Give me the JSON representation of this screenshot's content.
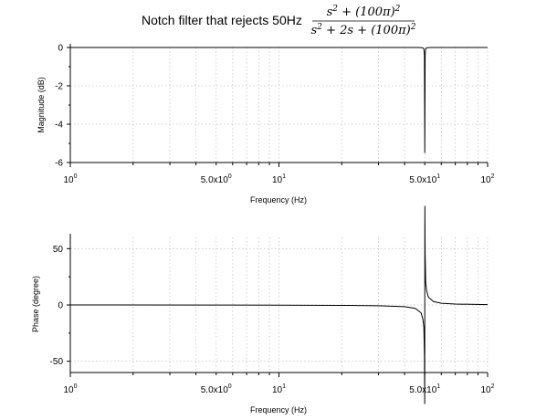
{
  "figure": {
    "title": "Notch filter that rejects 50Hz",
    "transfer_function": {
      "numerator": [
        "s",
        "2",
        " + (100π)",
        "2"
      ],
      "denominator": [
        "s",
        "2",
        " + 2s + (100π)",
        "2"
      ]
    }
  },
  "chart_data": [
    {
      "type": "line",
      "xlabel": "Frequency (Hz)",
      "ylabel": "Magnitude (dB)",
      "xscale": "log",
      "xlim": [
        1,
        100
      ],
      "ylim": [
        -6,
        0
      ],
      "yticks": [
        0,
        -2,
        -4,
        -6
      ],
      "ytick_labels": [
        "0",
        "-2",
        "-4",
        "-6"
      ],
      "xtick_labels": [
        {
          "value": 1,
          "base": "10",
          "exp": "0"
        },
        {
          "value": 5,
          "base": "5.0x10",
          "exp": "0"
        },
        {
          "value": 10,
          "base": "10",
          "exp": "1"
        },
        {
          "value": 50,
          "base": "5.0x10",
          "exp": "1"
        },
        {
          "value": 100,
          "base": "10",
          "exp": "2"
        }
      ],
      "grid": true,
      "series": [
        {
          "x": [
            1,
            2,
            5,
            10,
            20,
            30,
            40,
            45,
            48,
            49,
            49.5,
            49.8,
            50,
            50.2,
            50.5,
            51,
            52,
            55,
            60,
            70,
            100
          ],
          "values": [
            0,
            0,
            0,
            0,
            0,
            0,
            0,
            -0.001,
            -0.005,
            -0.02,
            -0.08,
            -0.4,
            -5.5,
            -0.4,
            -0.08,
            -0.02,
            -0.005,
            -0.001,
            0,
            0,
            0
          ]
        }
      ]
    },
    {
      "type": "line",
      "xlabel": "Frequency (Hz)",
      "ylabel": "Phase (degree)",
      "xscale": "log",
      "xlim": [
        1,
        100
      ],
      "ylim": [
        -60,
        60
      ],
      "yticks": [
        50,
        0,
        -50
      ],
      "ytick_labels": [
        "50",
        "0",
        "-50"
      ],
      "xtick_labels": [
        {
          "value": 1,
          "base": "10",
          "exp": "0"
        },
        {
          "value": 5,
          "base": "5.0x10",
          "exp": "0"
        },
        {
          "value": 10,
          "base": "10",
          "exp": "1"
        },
        {
          "value": 50,
          "base": "5.0x10",
          "exp": "1"
        },
        {
          "value": 100,
          "base": "10",
          "exp": "2"
        }
      ],
      "grid": true,
      "series": [
        {
          "x": [
            1,
            5,
            10,
            20,
            30,
            40,
            45,
            48,
            49,
            49.5,
            49.8,
            49.95,
            50.05,
            50.2,
            50.5,
            51,
            52,
            55,
            60,
            70,
            100
          ],
          "values": [
            0,
            -0.1,
            -0.2,
            -0.4,
            -0.7,
            -1.5,
            -3,
            -7,
            -13,
            -20,
            -45,
            -88,
            88,
            45,
            20,
            13,
            7,
            3,
            1.5,
            0.8,
            0.3
          ]
        }
      ]
    }
  ]
}
